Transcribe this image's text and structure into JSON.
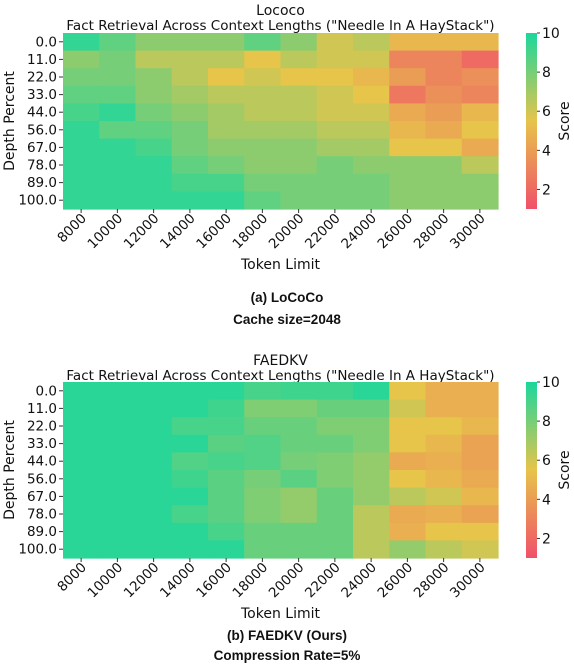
{
  "colors": {
    "low": "#f0506a",
    "mid": "#e7c44a",
    "high": "#1bd79c"
  },
  "charts": [
    {
      "caption_label": "(a) LoCoCo",
      "caption_detail": "Cache size=2048"
    },
    {
      "caption_label": "(b) FAEDKV (Ours)",
      "caption_detail": "Compression Rate=5%"
    }
  ],
  "chart_data": [
    {
      "type": "heatmap",
      "title": "Lococo",
      "subtitle": "Fact Retrieval Across Context Lengths (\"Needle In A HayStack\")",
      "xlabel": "Token Limit",
      "ylabel": "Depth Percent",
      "colorbar_label": "Score",
      "colorbar_ticks": [
        2,
        4,
        6,
        8,
        10
      ],
      "vmin": 1,
      "vmax": 10,
      "x": [
        "8000",
        "10000",
        "12000",
        "14000",
        "16000",
        "18000",
        "20000",
        "22000",
        "24000",
        "26000",
        "28000",
        "30000"
      ],
      "y": [
        "0.0",
        "11.0",
        "22.0",
        "33.0",
        "44.0",
        "56.0",
        "67.0",
        "78.0",
        "89.0",
        "100.0"
      ],
      "values": [
        [
          9.5,
          8.5,
          7.5,
          7.5,
          7.5,
          8.5,
          7.5,
          6.0,
          6.5,
          5.0,
          5.0,
          5.0
        ],
        [
          7.5,
          8.0,
          6.5,
          6.5,
          6.5,
          5.5,
          6.5,
          6.0,
          6.0,
          3.0,
          3.0,
          2.0
        ],
        [
          8.0,
          8.0,
          7.5,
          6.5,
          5.5,
          6.0,
          5.5,
          5.5,
          5.0,
          4.0,
          3.0,
          3.5
        ],
        [
          8.5,
          8.5,
          7.5,
          7.0,
          6.5,
          6.5,
          6.5,
          6.0,
          5.5,
          2.5,
          3.5,
          3.0
        ],
        [
          9.0,
          9.5,
          8.0,
          7.5,
          7.0,
          6.5,
          6.5,
          6.0,
          6.0,
          4.5,
          4.0,
          5.0
        ],
        [
          9.5,
          8.5,
          8.5,
          8.0,
          7.0,
          7.0,
          7.0,
          6.5,
          6.5,
          5.0,
          4.5,
          5.5
        ],
        [
          9.5,
          9.5,
          9.0,
          8.0,
          7.5,
          7.5,
          7.5,
          7.0,
          7.0,
          5.5,
          5.5,
          4.5
        ],
        [
          9.5,
          9.5,
          9.5,
          8.5,
          8.0,
          7.5,
          7.5,
          8.0,
          7.5,
          7.5,
          7.5,
          6.5
        ],
        [
          9.5,
          9.5,
          9.5,
          9.0,
          9.0,
          8.0,
          8.0,
          8.0,
          8.0,
          7.5,
          7.5,
          7.5
        ],
        [
          9.5,
          9.5,
          9.5,
          9.5,
          9.5,
          8.5,
          8.0,
          8.0,
          8.0,
          7.5,
          7.5,
          7.5
        ]
      ]
    },
    {
      "type": "heatmap",
      "title": "FAEDKV",
      "subtitle": "Fact Retrieval Across Context Lengths (\"Needle In A HayStack\")",
      "xlabel": "Token Limit",
      "ylabel": "Depth Percent",
      "colorbar_label": "Score",
      "colorbar_ticks": [
        2,
        4,
        6,
        8,
        10
      ],
      "vmin": 1,
      "vmax": 10,
      "x": [
        "8000",
        "10000",
        "12000",
        "14000",
        "16000",
        "18000",
        "20000",
        "22000",
        "24000",
        "26000",
        "28000",
        "30000"
      ],
      "y": [
        "0.0",
        "11.0",
        "22.0",
        "33.0",
        "44.0",
        "56.0",
        "67.0",
        "78.0",
        "89.0",
        "100.0"
      ],
      "values": [
        [
          9.7,
          9.7,
          9.7,
          9.7,
          9.7,
          9.0,
          9.2,
          9.2,
          9.7,
          5.5,
          4.7,
          4.7
        ],
        [
          9.7,
          9.7,
          9.7,
          9.7,
          9.2,
          7.8,
          7.8,
          8.3,
          8.3,
          6.0,
          4.7,
          4.7
        ],
        [
          9.7,
          9.7,
          9.7,
          9.0,
          9.0,
          8.3,
          8.3,
          7.8,
          7.8,
          5.5,
          5.5,
          5.0
        ],
        [
          9.7,
          9.7,
          9.7,
          9.7,
          8.6,
          8.8,
          8.3,
          8.3,
          7.8,
          5.5,
          5.0,
          4.2
        ],
        [
          9.7,
          9.7,
          9.7,
          8.8,
          9.0,
          8.8,
          8.0,
          7.8,
          7.3,
          4.5,
          4.7,
          4.2
        ],
        [
          9.7,
          9.7,
          9.7,
          9.2,
          8.6,
          8.0,
          8.6,
          7.8,
          7.3,
          5.5,
          5.0,
          4.5
        ],
        [
          9.7,
          9.7,
          9.7,
          9.7,
          8.6,
          7.8,
          7.3,
          8.3,
          7.3,
          6.5,
          6.0,
          5.0
        ],
        [
          9.7,
          9.7,
          9.7,
          9.0,
          8.6,
          7.8,
          7.3,
          8.3,
          6.5,
          4.5,
          4.7,
          4.2
        ],
        [
          9.7,
          9.7,
          9.7,
          9.7,
          9.0,
          8.3,
          8.3,
          8.3,
          6.5,
          4.7,
          5.5,
          5.5
        ],
        [
          9.7,
          9.7,
          9.7,
          9.7,
          9.7,
          8.3,
          8.3,
          8.3,
          6.5,
          7.3,
          6.5,
          6.0
        ]
      ]
    }
  ]
}
